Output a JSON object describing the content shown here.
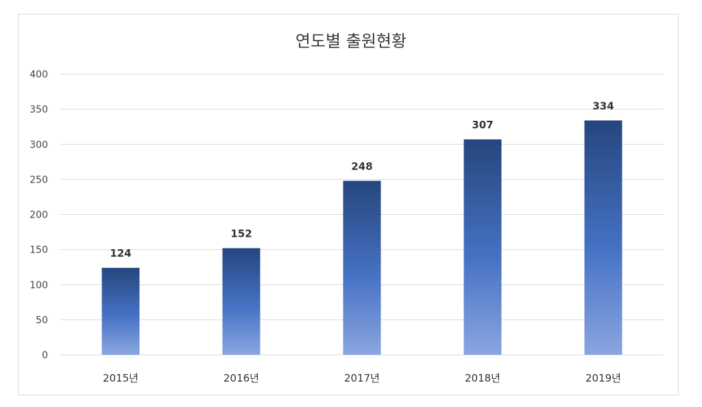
{
  "chart_data": {
    "type": "bar",
    "title": "연도별 출원현황",
    "categories": [
      "2015년",
      "2016년",
      "2017년",
      "2018년",
      "2019년"
    ],
    "values": [
      124,
      152,
      248,
      307,
      334
    ],
    "data_labels": [
      "124",
      "152",
      "248",
      "307",
      "334"
    ],
    "ylim": [
      0,
      400
    ],
    "yticks": [
      "0",
      "50",
      "100",
      "150",
      "200",
      "250",
      "300",
      "350",
      "400"
    ],
    "xlabel": "",
    "ylabel": "",
    "grid": true,
    "legend": "none",
    "colors": {
      "bar_top": "#25467e",
      "bar_bottom": "#8aa6e0",
      "bar_mid": "#4672c4"
    }
  }
}
